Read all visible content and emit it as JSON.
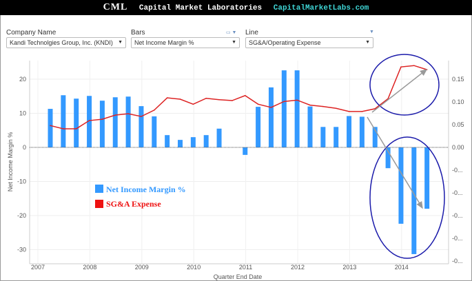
{
  "banner": {
    "logo": "CML",
    "title": "Capital Market Laboratories",
    "url": "CapitalMarketLabs.com"
  },
  "controls": {
    "company": {
      "label": "Company Name",
      "value": "Kandi Technolgies Group, Inc. (KNDI)"
    },
    "bars": {
      "label": "Bars",
      "value": "Net Income Margin %"
    },
    "line": {
      "label": "Line",
      "value": "SG&A/Operating Expense"
    }
  },
  "legend": {
    "bars": "Net Income Margin %",
    "line": "SG&A Expense",
    "bars_color": "#3399ff",
    "line_color": "#ee1111"
  },
  "annotation_color": "#1a1aaa",
  "chart_data": {
    "type": "bar+line",
    "xlabel": "Quarter End Date",
    "ylabel": "Net Income Margin %",
    "x_ticks": [
      "2007",
      "2008",
      "2009",
      "2010",
      "2011",
      "2012",
      "2013",
      "2014"
    ],
    "y_ticks": [
      "20",
      "10",
      "0",
      "-10",
      "-20",
      "-30"
    ],
    "y2_ticks": [
      "0.15",
      "0.10",
      "0.05",
      "0.00",
      "-0...",
      "-0...",
      "-0...",
      "-0...",
      "-0..."
    ],
    "ylim": [
      -33,
      25
    ],
    "y2lim": [
      -0.25,
      0.19
    ],
    "x": [
      "2007-03",
      "2007-06",
      "2007-09",
      "2007-12",
      "2008-03",
      "2008-06",
      "2008-09",
      "2008-12",
      "2009-03",
      "2009-06",
      "2009-09",
      "2009-12",
      "2010-03",
      "2010-06",
      "2010-09",
      "2010-12",
      "2011-03",
      "2011-06",
      "2011-09",
      "2011-12",
      "2012-03",
      "2012-06",
      "2012-09",
      "2012-12",
      "2013-03",
      "2013-06",
      "2013-09",
      "2013-12",
      "2014-03",
      "2014-06"
    ],
    "series": [
      {
        "type": "bar",
        "axis": "left",
        "values": [
          11.3,
          15.3,
          14.3,
          15.1,
          13.7,
          14.7,
          14.9,
          12.1,
          9.1,
          3.6,
          2.2,
          3.0,
          3.6,
          5.5,
          null,
          -2.2,
          11.9,
          17.6,
          22.6,
          22.6,
          12.0,
          6.0,
          6.0,
          9.2,
          9.0,
          6.0,
          -6.1,
          -22.4,
          -31.3,
          -18.0
        ]
      },
      {
        "type": "line",
        "axis": "right",
        "values": [
          0.048,
          0.041,
          0.041,
          0.059,
          0.062,
          0.071,
          0.074,
          0.068,
          0.082,
          0.109,
          0.106,
          0.095,
          0.108,
          0.105,
          0.103,
          0.114,
          0.095,
          0.088,
          0.101,
          0.104,
          0.093,
          0.09,
          0.086,
          0.079,
          0.079,
          0.085,
          0.107,
          0.177,
          0.18,
          0.171
        ]
      }
    ]
  }
}
